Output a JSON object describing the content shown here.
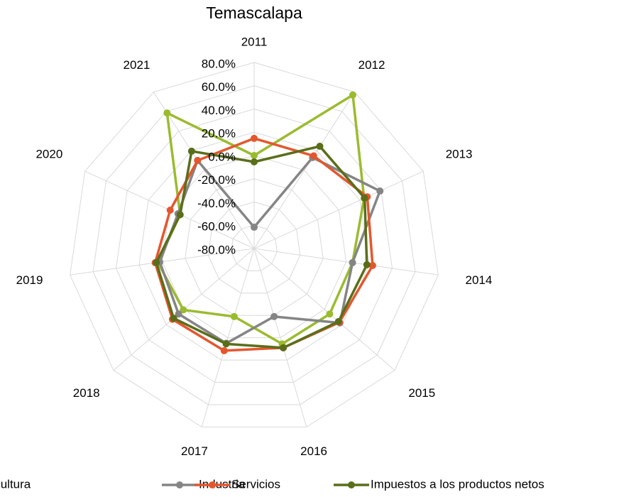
{
  "chart_data": {
    "type": "radar",
    "title": "Temascalapa",
    "categories": [
      "2011",
      "2012",
      "2013",
      "2014",
      "2015",
      "2016",
      "2017",
      "2018",
      "2019",
      "2020",
      "2021"
    ],
    "ylim": [
      -80,
      80
    ],
    "yticks": [
      {
        "value": -80,
        "label": "-80.0%"
      },
      {
        "value": -60,
        "label": "-60.0%"
      },
      {
        "value": -40,
        "label": "-40.0%"
      },
      {
        "value": -20,
        "label": "-20.0%"
      },
      {
        "value": 0,
        "label": "0.0%"
      },
      {
        "value": 20,
        "label": "20.0%"
      },
      {
        "value": 40,
        "label": "40.0%"
      },
      {
        "value": 60,
        "label": "60.0%"
      },
      {
        "value": 80,
        "label": "80.0%"
      }
    ],
    "grid": true,
    "legend": "bottom",
    "series": [
      {
        "name": "Agricultura",
        "color": "#9bbb2f",
        "values": [
          0,
          77,
          24,
          5.5,
          6,
          5.5,
          -19,
          0.6,
          3.7,
          -10,
          58.6
        ]
      },
      {
        "name": "Industria",
        "color": "#858585",
        "values": [
          -61.7,
          13,
          39,
          5.5,
          17.7,
          -19,
          5,
          6,
          2,
          -8,
          10
        ]
      },
      {
        "name": "Servicios",
        "color": "#e4572e",
        "values": [
          14.7,
          14.7,
          27,
          23,
          17,
          9,
          11.6,
          13,
          6,
          -0.6,
          10
        ]
      },
      {
        "name": "Impuestos a los productos netos",
        "color": "#5a6e1a",
        "values": [
          -5.5,
          24.5,
          24.5,
          18,
          16,
          9,
          5.5,
          11.6,
          5,
          -10,
          19.5
        ]
      }
    ]
  }
}
